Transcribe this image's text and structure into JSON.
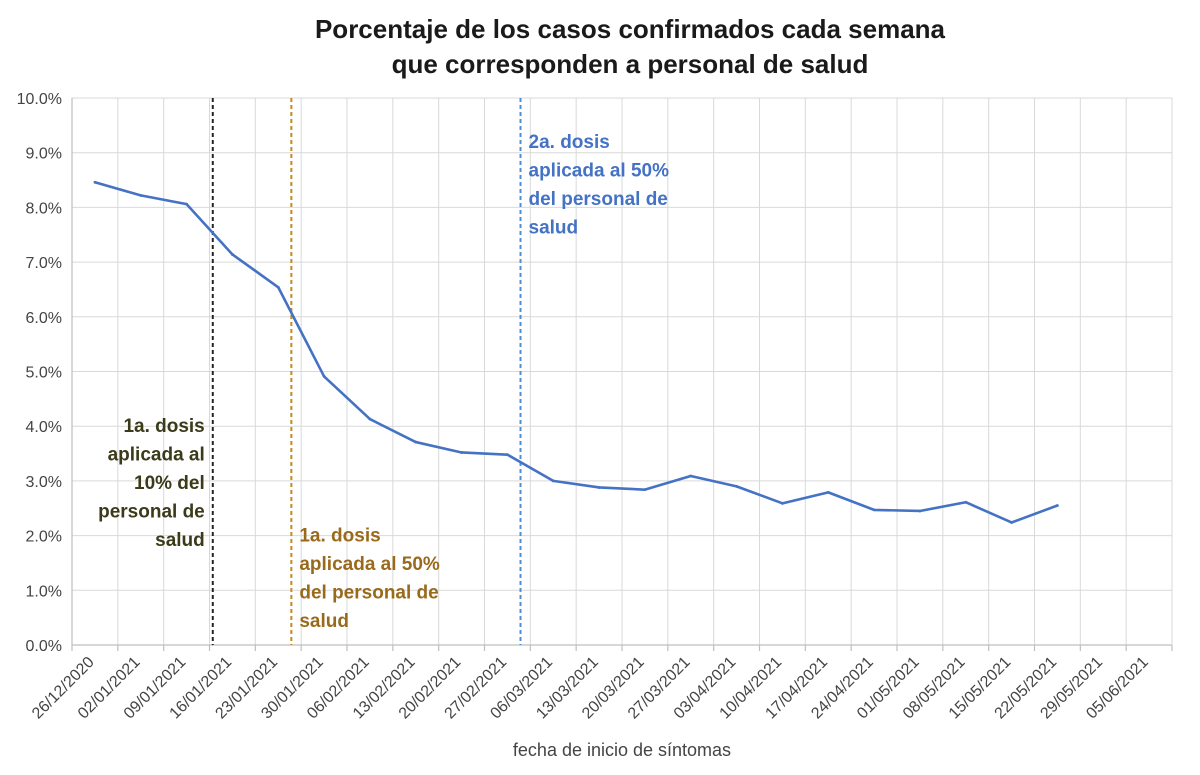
{
  "chart_data": {
    "type": "line",
    "title_lines": [
      "Porcentaje de los casos confirmados cada semana",
      "que corresponden a personal de salud"
    ],
    "xlabel": "fecha de inicio de síntomas",
    "ylabel": "",
    "ylim": [
      0,
      0.1
    ],
    "yticks": [
      "0.0%",
      "1.0%",
      "2.0%",
      "3.0%",
      "4.0%",
      "5.0%",
      "6.0%",
      "7.0%",
      "8.0%",
      "9.0%",
      "10.0%"
    ],
    "grid": true,
    "categories": [
      "26/12/2020",
      "02/01/2021",
      "09/01/2021",
      "16/01/2021",
      "23/01/2021",
      "30/01/2021",
      "06/02/2021",
      "13/02/2021",
      "20/02/2021",
      "27/02/2021",
      "06/03/2021",
      "13/03/2021",
      "20/03/2021",
      "27/03/2021",
      "03/04/2021",
      "10/04/2021",
      "17/04/2021",
      "24/04/2021",
      "01/05/2021",
      "08/05/2021",
      "15/05/2021",
      "22/05/2021",
      "29/05/2021",
      "05/06/2021"
    ],
    "series": [
      {
        "color": "#4472c4",
        "x": [
          "26/12/2020",
          "02/01/2021",
          "09/01/2021",
          "16/01/2021",
          "23/01/2021",
          "30/01/2021",
          "06/02/2021",
          "13/02/2021",
          "20/02/2021",
          "27/02/2021",
          "06/03/2021",
          "13/03/2021",
          "20/03/2021",
          "27/03/2021",
          "03/04/2021",
          "10/04/2021",
          "17/04/2021",
          "24/04/2021",
          "01/05/2021",
          "08/05/2021",
          "15/05/2021",
          "22/05/2021"
        ],
        "values": [
          0.0846,
          0.0822,
          0.0806,
          0.0714,
          0.0654,
          0.0491,
          0.0413,
          0.0371,
          0.0352,
          0.0348,
          0.03,
          0.0288,
          0.0284,
          0.0309,
          0.029,
          0.0259,
          0.0279,
          0.0247,
          0.0245,
          0.0261,
          0.0224,
          0.0255
        ]
      }
    ],
    "annotations": [
      {
        "x": "13/01/2021",
        "color": "#262626",
        "text_color": "#3b3b1a",
        "align": "right",
        "text_y": 0.04,
        "lines": [
          "1a. dosis",
          "aplicada al",
          "10% del",
          "personal de",
          "salud"
        ]
      },
      {
        "x": "25/01/2021",
        "color": "#c98a1e",
        "text_color": "#9a6a1c",
        "align": "left",
        "text_y": 0.02,
        "lines": [
          "1a. dosis",
          "aplicada al 50%",
          "del personal de",
          "salud"
        ]
      },
      {
        "x": "01/03/2021",
        "color": "#4f8dd6",
        "text_color": "#4472c4",
        "align": "left",
        "text_y": 0.092,
        "lines": [
          "2a. dosis",
          "aplicada al 50%",
          "del personal de",
          "salud"
        ]
      }
    ]
  }
}
